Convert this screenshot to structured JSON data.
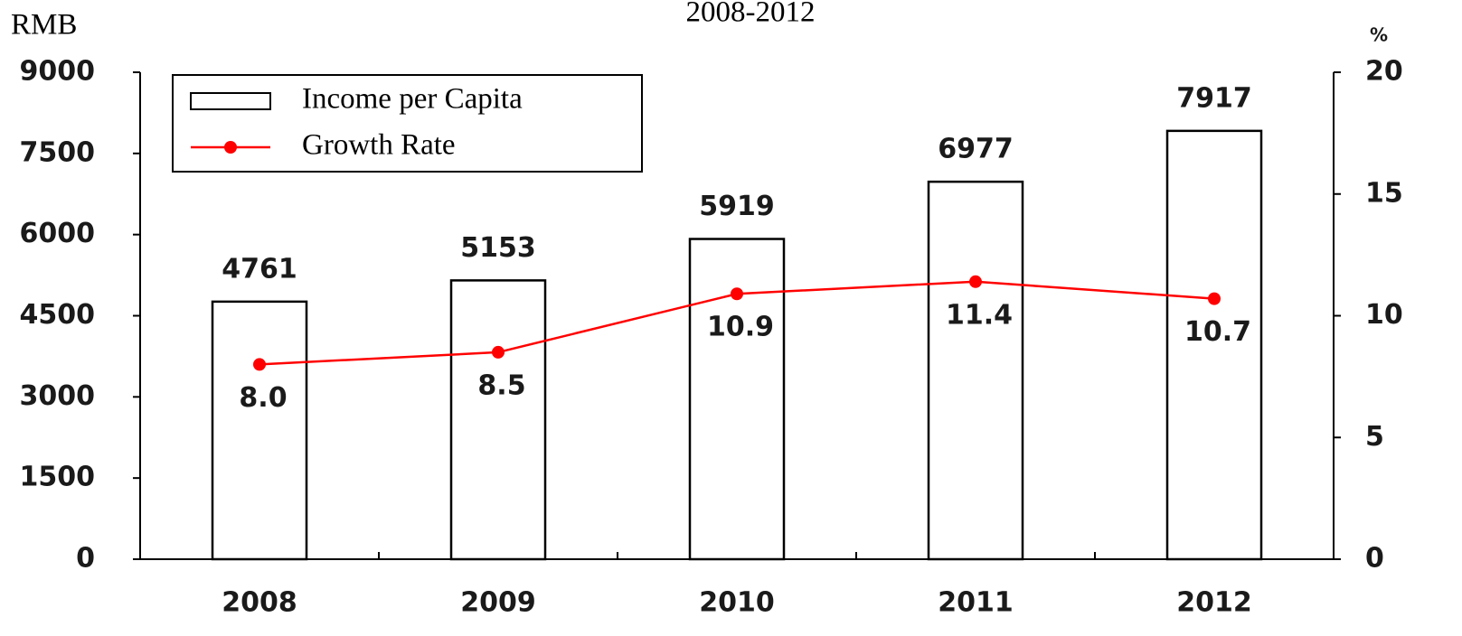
{
  "chart_data": {
    "type": "bar",
    "title": "2008-2012",
    "ylabel": "RMB",
    "y2label": "%",
    "categories": [
      "2008",
      "2009",
      "2010",
      "2011",
      "2012"
    ],
    "series": [
      {
        "name": "Income per Capita",
        "type": "bar",
        "color": "#ffffff",
        "values": [
          4761,
          5153,
          5919,
          6977,
          7917
        ]
      },
      {
        "name": "Growth Rate",
        "type": "line",
        "axis": "y2",
        "color": "#ff0000",
        "values": [
          8.0,
          8.5,
          10.9,
          11.4,
          10.7
        ],
        "value_labels": [
          "8.0",
          "8.5",
          "10.9",
          "11.4",
          "10.7"
        ]
      }
    ],
    "ylim": [
      0,
      9000
    ],
    "yticks": [
      0,
      1500,
      3000,
      4500,
      6000,
      7500,
      9000
    ],
    "y2lim": [
      0,
      20
    ],
    "y2ticks": [
      0,
      5,
      10,
      15,
      20
    ],
    "legend": "top-left",
    "grid": false
  }
}
